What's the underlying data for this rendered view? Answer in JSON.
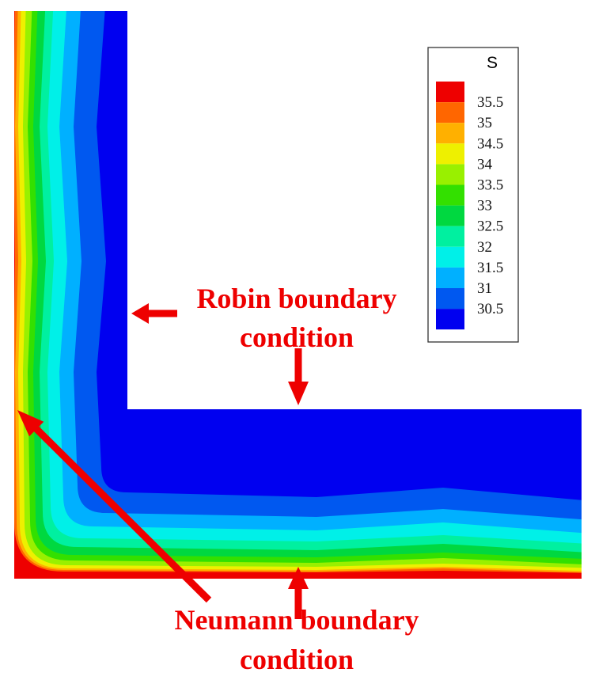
{
  "legend": {
    "title": "S",
    "levels": [
      {
        "label": "35.5",
        "color": "#ee0000"
      },
      {
        "label": "35",
        "color": "#ff6600"
      },
      {
        "label": "34.5",
        "color": "#ffb000"
      },
      {
        "label": "34",
        "color": "#eef000"
      },
      {
        "label": "33.5",
        "color": "#99f000"
      },
      {
        "label": "33",
        "color": "#33e000"
      },
      {
        "label": "32.5",
        "color": "#00d840"
      },
      {
        "label": "32",
        "color": "#00f0a0"
      },
      {
        "label": "31.5",
        "color": "#00f0e8"
      },
      {
        "label": "31",
        "color": "#00b0ff"
      },
      {
        "label": "30.5",
        "color": "#0058f0"
      },
      {
        "label": "",
        "color": "#0000f0"
      }
    ]
  },
  "annotations": {
    "robin_line1": "Robin boundary",
    "robin_line2": "condition",
    "neumann_line1": "Neumann boundary",
    "neumann_line2": "condition",
    "color": "#ee0000"
  }
}
